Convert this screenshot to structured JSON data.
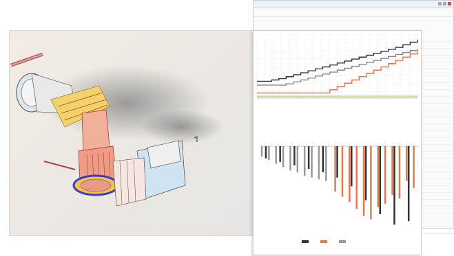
{
  "back_window": {
    "title": "",
    "side_rows": [
      "",
      "",
      "",
      "",
      "",
      "",
      "",
      "",
      "",
      "",
      "",
      "",
      "",
      "",
      "",
      "",
      "",
      "",
      "",
      "",
      "",
      "",
      "",
      "",
      "",
      "",
      "",
      "",
      ""
    ]
  },
  "chart_panel": {
    "top_chart_title": "",
    "mid_caption": "",
    "bottom_caption": "",
    "bottom_title": "",
    "legend": [
      {
        "label": "",
        "color": "#333333"
      },
      {
        "label": "",
        "color": "#e8774f"
      },
      {
        "label": "",
        "color": "#9a9a9a"
      }
    ]
  },
  "colors": {
    "accent": "#e8774f",
    "dark": "#333333",
    "grey": "#9a9a9a",
    "band": "#cfe6f5"
  },
  "chart_data": [
    {
      "type": "line",
      "title": "",
      "x": [
        0,
        1,
        2,
        3,
        4,
        5,
        6,
        7,
        8,
        9,
        10,
        11,
        12,
        13,
        14,
        15,
        16,
        17,
        18,
        19,
        20,
        21,
        22
      ],
      "series": [
        {
          "name": "",
          "color": "#333333",
          "values": [
            28,
            28,
            30,
            32,
            35,
            38,
            41,
            44,
            47,
            50,
            53,
            56,
            59,
            62,
            65,
            68,
            71,
            74,
            77,
            80,
            84,
            88,
            92
          ]
        },
        {
          "name": "",
          "color": "#888888",
          "values": [
            22,
            22,
            22,
            22,
            24,
            27,
            30,
            33,
            36,
            39,
            42,
            45,
            48,
            51,
            54,
            57,
            60,
            63,
            66,
            69,
            72,
            75,
            78
          ]
        },
        {
          "name": "",
          "color": "#e8774f",
          "values": [
            10,
            10,
            10,
            10,
            10,
            10,
            10,
            10,
            10,
            10,
            15,
            20,
            25,
            30,
            35,
            40,
            45,
            50,
            55,
            60,
            65,
            70,
            75
          ]
        },
        {
          "name": "",
          "color": "#9cc9e8",
          "values": [
            4,
            4,
            4,
            4,
            4,
            4,
            4,
            4,
            4,
            4,
            4,
            4,
            4,
            4,
            4,
            4,
            4,
            4,
            4,
            4,
            4,
            4,
            4
          ]
        }
      ],
      "ylim": [
        0,
        100
      ],
      "grid": true
    },
    {
      "type": "bar",
      "title": "",
      "categories": [
        "",
        "",
        "",
        "",
        "",
        "",
        "",
        "",
        "",
        "",
        "",
        "",
        "",
        "",
        "",
        "",
        "",
        "",
        "",
        "",
        "",
        ""
      ],
      "series": [
        {
          "name": "",
          "color": "#9a9a9a",
          "values": [
            -12,
            -16,
            -20,
            -24,
            -28,
            -30,
            -34,
            -36,
            -38,
            -40,
            0,
            0,
            0,
            0,
            0,
            0,
            0,
            0,
            0,
            0,
            0,
            0
          ]
        },
        {
          "name": "",
          "color": "#e8774f",
          "values": [
            0,
            0,
            0,
            0,
            0,
            0,
            0,
            0,
            0,
            0,
            -52,
            -58,
            -64,
            -72,
            -80,
            -84,
            -70,
            -66,
            -56,
            -60,
            -40,
            -48
          ]
        },
        {
          "name": "",
          "color": "#333333",
          "values": [
            -14,
            0,
            -18,
            0,
            -22,
            0,
            -26,
            0,
            -30,
            0,
            -36,
            0,
            -46,
            0,
            -62,
            0,
            -78,
            0,
            -90,
            0,
            -86,
            0
          ]
        }
      ],
      "ylim": [
        -100,
        0
      ],
      "grid": false
    }
  ]
}
